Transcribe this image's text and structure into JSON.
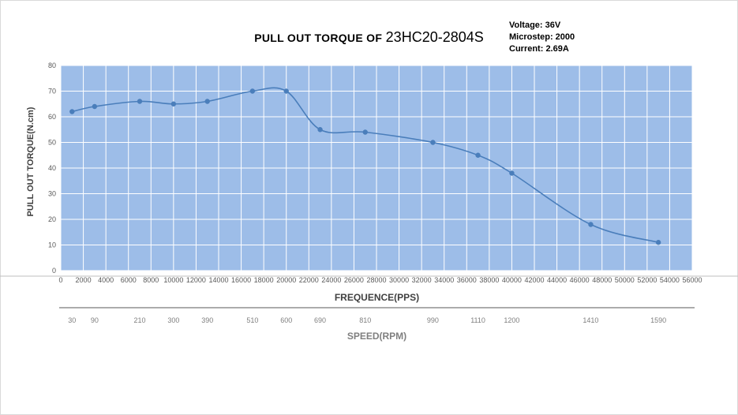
{
  "chart_data": {
    "type": "line",
    "title_prefix": "PULL OUT TORQUE  OF",
    "title_model": "23HC20-2804S",
    "params": [
      "Voltage: 36V",
      "Microstep: 2000",
      "Current: 2.69A"
    ],
    "xlabel": "FREQUENCE(PPS)",
    "ylabel": "PULL OUT TORQUE(N.cm)",
    "secondary_axis_label": "SPEED(RPM)",
    "xlim": [
      0,
      56000
    ],
    "ylim": [
      0,
      80
    ],
    "x_ticks": [
      0,
      2000,
      4000,
      6000,
      8000,
      10000,
      12000,
      14000,
      16000,
      18000,
      20000,
      22000,
      24000,
      26000,
      28000,
      30000,
      32000,
      34000,
      36000,
      38000,
      40000,
      42000,
      44000,
      46000,
      48000,
      50000,
      52000,
      54000,
      56000
    ],
    "y_ticks": [
      0,
      10,
      20,
      30,
      40,
      50,
      60,
      70,
      80
    ],
    "grid": true,
    "series": [
      {
        "x": [
          1000,
          3000,
          7000,
          10000,
          13000,
          17000,
          20000,
          23000,
          27000,
          33000,
          37000,
          40000,
          47000,
          53000
        ],
        "y": [
          62,
          64,
          66,
          65,
          66,
          70,
          70,
          55,
          54,
          50,
          45,
          38,
          18,
          11
        ]
      }
    ],
    "speed_labels": [
      {
        "x": 1000,
        "label": "30"
      },
      {
        "x": 3000,
        "label": "90"
      },
      {
        "x": 7000,
        "label": "210"
      },
      {
        "x": 10000,
        "label": "300"
      },
      {
        "x": 13000,
        "label": "390"
      },
      {
        "x": 17000,
        "label": "510"
      },
      {
        "x": 20000,
        "label": "600"
      },
      {
        "x": 23000,
        "label": "690"
      },
      {
        "x": 27000,
        "label": "810"
      },
      {
        "x": 33000,
        "label": "990"
      },
      {
        "x": 37000,
        "label": "1110"
      },
      {
        "x": 40000,
        "label": "1200"
      },
      {
        "x": 47000,
        "label": "1410"
      },
      {
        "x": 53000,
        "label": "1590"
      }
    ],
    "colors": {
      "plot_bg": "#9dbde8",
      "grid": "#ffffff",
      "line": "#4a7ebb",
      "marker": "#4a7ebb"
    }
  }
}
